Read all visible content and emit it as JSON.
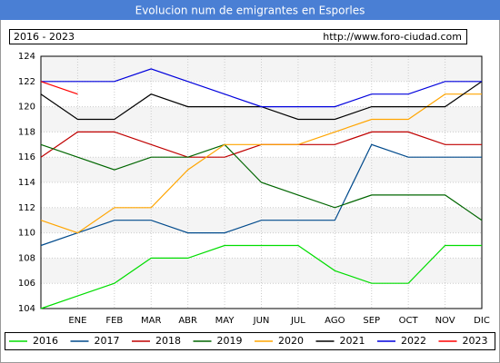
{
  "chart_data": {
    "type": "line",
    "title": "Evolucion num de emigrantes en Esporles",
    "subtitle": "2016 - 2023",
    "source": "http://www.foro-ciudad.com",
    "categories": [
      null,
      "ENE",
      "FEB",
      "MAR",
      "ABR",
      "MAY",
      "JUN",
      "JUL",
      "AGO",
      "SEP",
      "OCT",
      "NOV",
      "DIC"
    ],
    "ylim": [
      104,
      124
    ],
    "yticks": [
      104,
      106,
      108,
      110,
      112,
      114,
      116,
      118,
      120,
      122,
      124
    ],
    "grid": true,
    "series": [
      {
        "name": "2016",
        "color": "#00dd00",
        "values": [
          104,
          105,
          106,
          108,
          108,
          109,
          109,
          109,
          107,
          106,
          106,
          109,
          109
        ]
      },
      {
        "name": "2017",
        "color": "#004a8c",
        "values": [
          109,
          110,
          111,
          111,
          110,
          110,
          111,
          111,
          111,
          117,
          116,
          116,
          116
        ]
      },
      {
        "name": "2018",
        "color": "#c00000",
        "values": [
          116,
          118,
          118,
          117,
          116,
          116,
          117,
          117,
          117,
          118,
          118,
          117,
          117
        ]
      },
      {
        "name": "2019",
        "color": "#006600",
        "values": [
          117,
          116,
          115,
          116,
          116,
          117,
          114,
          113,
          112,
          113,
          113,
          113,
          111
        ]
      },
      {
        "name": "2020",
        "color": "#ffa500",
        "values": [
          111,
          110,
          112,
          112,
          115,
          117,
          117,
          117,
          118,
          119,
          119,
          121,
          121
        ]
      },
      {
        "name": "2021",
        "color": "#000000",
        "values": [
          121,
          119,
          119,
          121,
          120,
          120,
          120,
          119,
          119,
          120,
          120,
          120,
          122
        ]
      },
      {
        "name": "2022",
        "color": "#0000dd",
        "values": [
          122,
          122,
          122,
          123,
          122,
          121,
          120,
          120,
          120,
          121,
          121,
          122,
          122
        ]
      },
      {
        "name": "2023",
        "color": "#ff0000",
        "values": [
          122,
          121,
          null,
          null,
          null,
          null,
          null,
          null,
          null,
          null,
          null,
          null,
          null
        ]
      }
    ]
  }
}
